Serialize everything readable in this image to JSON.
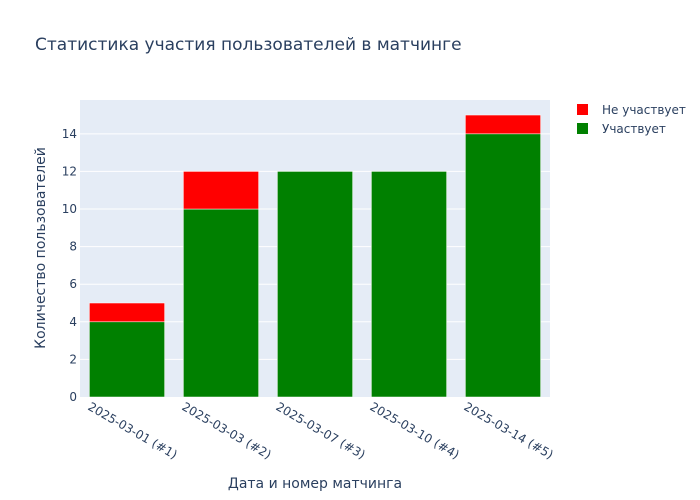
{
  "chart_data": {
    "type": "bar",
    "stacked": true,
    "title": "Статистика участия пользователей в матчинге",
    "xlabel": "Дата и номер матчинга",
    "ylabel": "Количество пользователей",
    "categories": [
      "2025-03-01 (#1)",
      "2025-03-03 (#2)",
      "2025-03-07 (#3)",
      "2025-03-10 (#4)",
      "2025-03-14 (#5)"
    ],
    "series": [
      {
        "name": "Участвует",
        "color": "#008000",
        "values": [
          4,
          10,
          12,
          12,
          14
        ]
      },
      {
        "name": "Не участвует",
        "color": "#ff0000",
        "values": [
          1,
          2,
          0,
          0,
          1
        ]
      }
    ],
    "legend_order": [
      "Не участвует",
      "Участвует"
    ],
    "ylim": [
      0,
      15.8
    ],
    "yticks": [
      0,
      2,
      4,
      6,
      8,
      10,
      12,
      14
    ],
    "grid": true,
    "legend_position": "top-right",
    "plot_background": "#e5ecf6"
  }
}
